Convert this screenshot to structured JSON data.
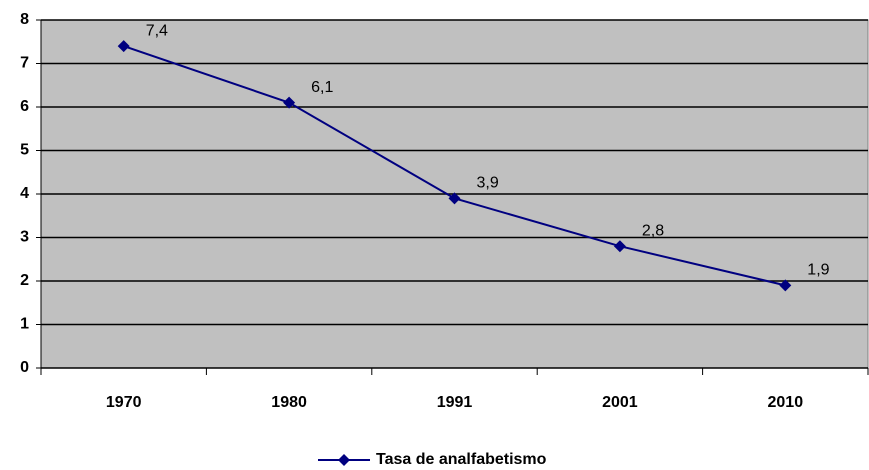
{
  "chart_data": {
    "type": "line",
    "categories": [
      "1970",
      "1980",
      "1991",
      "2001",
      "2010"
    ],
    "series": [
      {
        "name": "Tasa de analfabetismo",
        "color": "#000080",
        "values": [
          7.4,
          6.1,
          3.9,
          2.8,
          1.9
        ],
        "value_labels": [
          "7,4",
          "6,1",
          "3,9",
          "2,8",
          "1,9"
        ]
      }
    ],
    "ylim": [
      0,
      8
    ],
    "yticks": [
      0,
      1,
      2,
      3,
      4,
      5,
      6,
      7,
      8
    ],
    "grid": true,
    "legend": "bottom"
  }
}
